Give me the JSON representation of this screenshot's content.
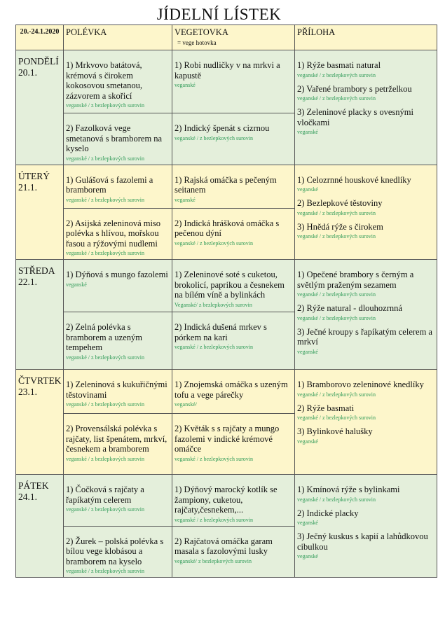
{
  "title": "JÍDELNÍ LÍSTEK",
  "header": {
    "date_range": "20.-24.1.2020",
    "soup": "POLÉVKA",
    "vege": "VEGETOVKA",
    "vege_note": "=   vege hotovka",
    "side": "PŘÍLOHA"
  },
  "days": [
    {
      "name": "PONDĚLÍ",
      "date": "20.1.",
      "soups": [
        {
          "text": "1) Mrkvovo batátová, krémová s čirokem kokosovou smetanou, zázvorem a skořicí",
          "note": "veganské / z bezlepkových surovin"
        },
        {
          "text": "2) Fazolková vege smetanová s bramborem na kyselo",
          "note": "veganské / z bezlepkových surovin"
        }
      ],
      "vege": [
        {
          "text": "1) Robi nudličky v na mrkvi a kapustě",
          "note": "veganské"
        },
        {
          "text": "2) Indický špenát s cizrnou",
          "note": "veganské / z bezlepkových surovin"
        }
      ],
      "sides": [
        {
          "text": "1) Rýže basmati natural",
          "note": "veganské / z bezlepkových surovin"
        },
        {
          "text": "2) Vařené brambory s petrželkou",
          "note": "veganské / z bezlepkových surovin"
        },
        {
          "text": "3) Zeleninové placky s ovesnými vločkami",
          "note": "veganské"
        }
      ]
    },
    {
      "name": "ÚTERÝ",
      "date": "21.1.",
      "soups": [
        {
          "text": "1) Gulášová s fazolemi a bramborem",
          "note": "veganské / z bezlepkových surovin"
        },
        {
          "text": "2) Asijská zeleninová miso polévka s hlívou, mořskou řasou a rýžovými nudlemi",
          "note": "veganské / z bezlepkových surovin"
        }
      ],
      "vege": [
        {
          "text": "1)  Rajská omáčka s pečeným seitanem",
          "note": "veganské"
        },
        {
          "text": "2) Indická hrášková omáčka s pečenou dýní",
          "note": "veganské / z bezlepkových surovin"
        }
      ],
      "sides": [
        {
          "text": "1) Celozrnné houskové knedlíky",
          "note": "veganské"
        },
        {
          "text": "2) Bezlepkové těstoviny",
          "note": "veganské / z bezlepkových surovin"
        },
        {
          "text": "3) Hnědá rýže s čirokem",
          "note": "veganské / z bezlepkových surovin"
        }
      ]
    },
    {
      "name": "STŘEDA",
      "date": "22.1.",
      "soups": [
        {
          "text": "1)  Dýňová s mungo fazolemi",
          "note": "veganské"
        },
        {
          "text": "2) Zelná polévka s bramborem a uzeným tempehem",
          "note": "veganské / z bezlepkových surovin"
        }
      ],
      "vege": [
        {
          "text": "1) Zeleninové soté s cuketou, brokolicí, paprikou a česnekem na bílém víně a bylinkách",
          "note": "Veganské/ z bezlepkových surovin"
        },
        {
          "text": "2) Indická dušená mrkev s pórkem na kari",
          "note": "veganské / z bezlepkových surovin"
        }
      ],
      "sides": [
        {
          "text": "1) Opečené brambory s černým a světlým praženým sezamem",
          "note": "veganské / z bezlepkových surovin"
        },
        {
          "text": "2) Rýže natural - dlouhozrnná",
          "note": "veganské / z bezlepkových surovin"
        },
        {
          "text": "3) Ječné kroupy s řapíkatým celerem a mrkví",
          "note": "veganské"
        }
      ]
    },
    {
      "name": "ČTVRTEK",
      "date": "23.1.",
      "soups": [
        {
          "text": "1) Zeleninová s kukuřičnými těstovinami",
          "note": "veganské / z bezlepkových surovin"
        },
        {
          "text": "2) Provensálská polévka s rajčaty, list špenátem, mrkví, česnekem a bramborem",
          "note": "veganské / z bezlepkových surovin"
        }
      ],
      "vege": [
        {
          "text": "1) Znojemská omáčka s uzeným tofu a vege párečky",
          "note": "veganské/"
        },
        {
          "text": "2) Květák s s rajčaty a mungo fazolemi v indické krémové omáčce",
          "note": "veganské / z bezlepkových surovin"
        }
      ],
      "sides": [
        {
          "text": "1) Bramborovo zeleninové knedlíky",
          "note": "veganské / z bezlepkových surovin"
        },
        {
          "text": "2) Rýže basmati",
          "note": "veganské / z bezlepkových surovin"
        },
        {
          "text": "3) Bylinkové halušky",
          "note": "veganské"
        }
      ]
    },
    {
      "name": "PÁTEK",
      "date": "24.1.",
      "soups": [
        {
          "text": "1) Čočková s rajčaty a řapíkatým celerem",
          "note": "veganské / z bezlepkových surovin"
        },
        {
          "text": "2) Žurek – polská polévka s bílou vege klobásou a bramborem na kyselo",
          "note": "veganské / z bezlepkových surovin"
        }
      ],
      "vege": [
        {
          "text": "1) Dýňový marocký kotlík se žampiony, cuketou, rajčaty,česnekem,...",
          "note": "veganské / z bezlepkových surovin"
        },
        {
          "text": "2) Rajčatová omáčka garam masala s fazolovými lusky",
          "note": "veganské/ z bezlepkových surovin"
        }
      ],
      "sides": [
        {
          "text": "1) Kmínová rýže s bylinkami",
          "note": "veganské / z bezlepkových surovin"
        },
        {
          "text": "2) Indické placky",
          "note": "veganské"
        },
        {
          "text": "3) Ječný kuskus s kapií a lahůdkovou cibulkou",
          "note": "veganské"
        }
      ]
    }
  ]
}
